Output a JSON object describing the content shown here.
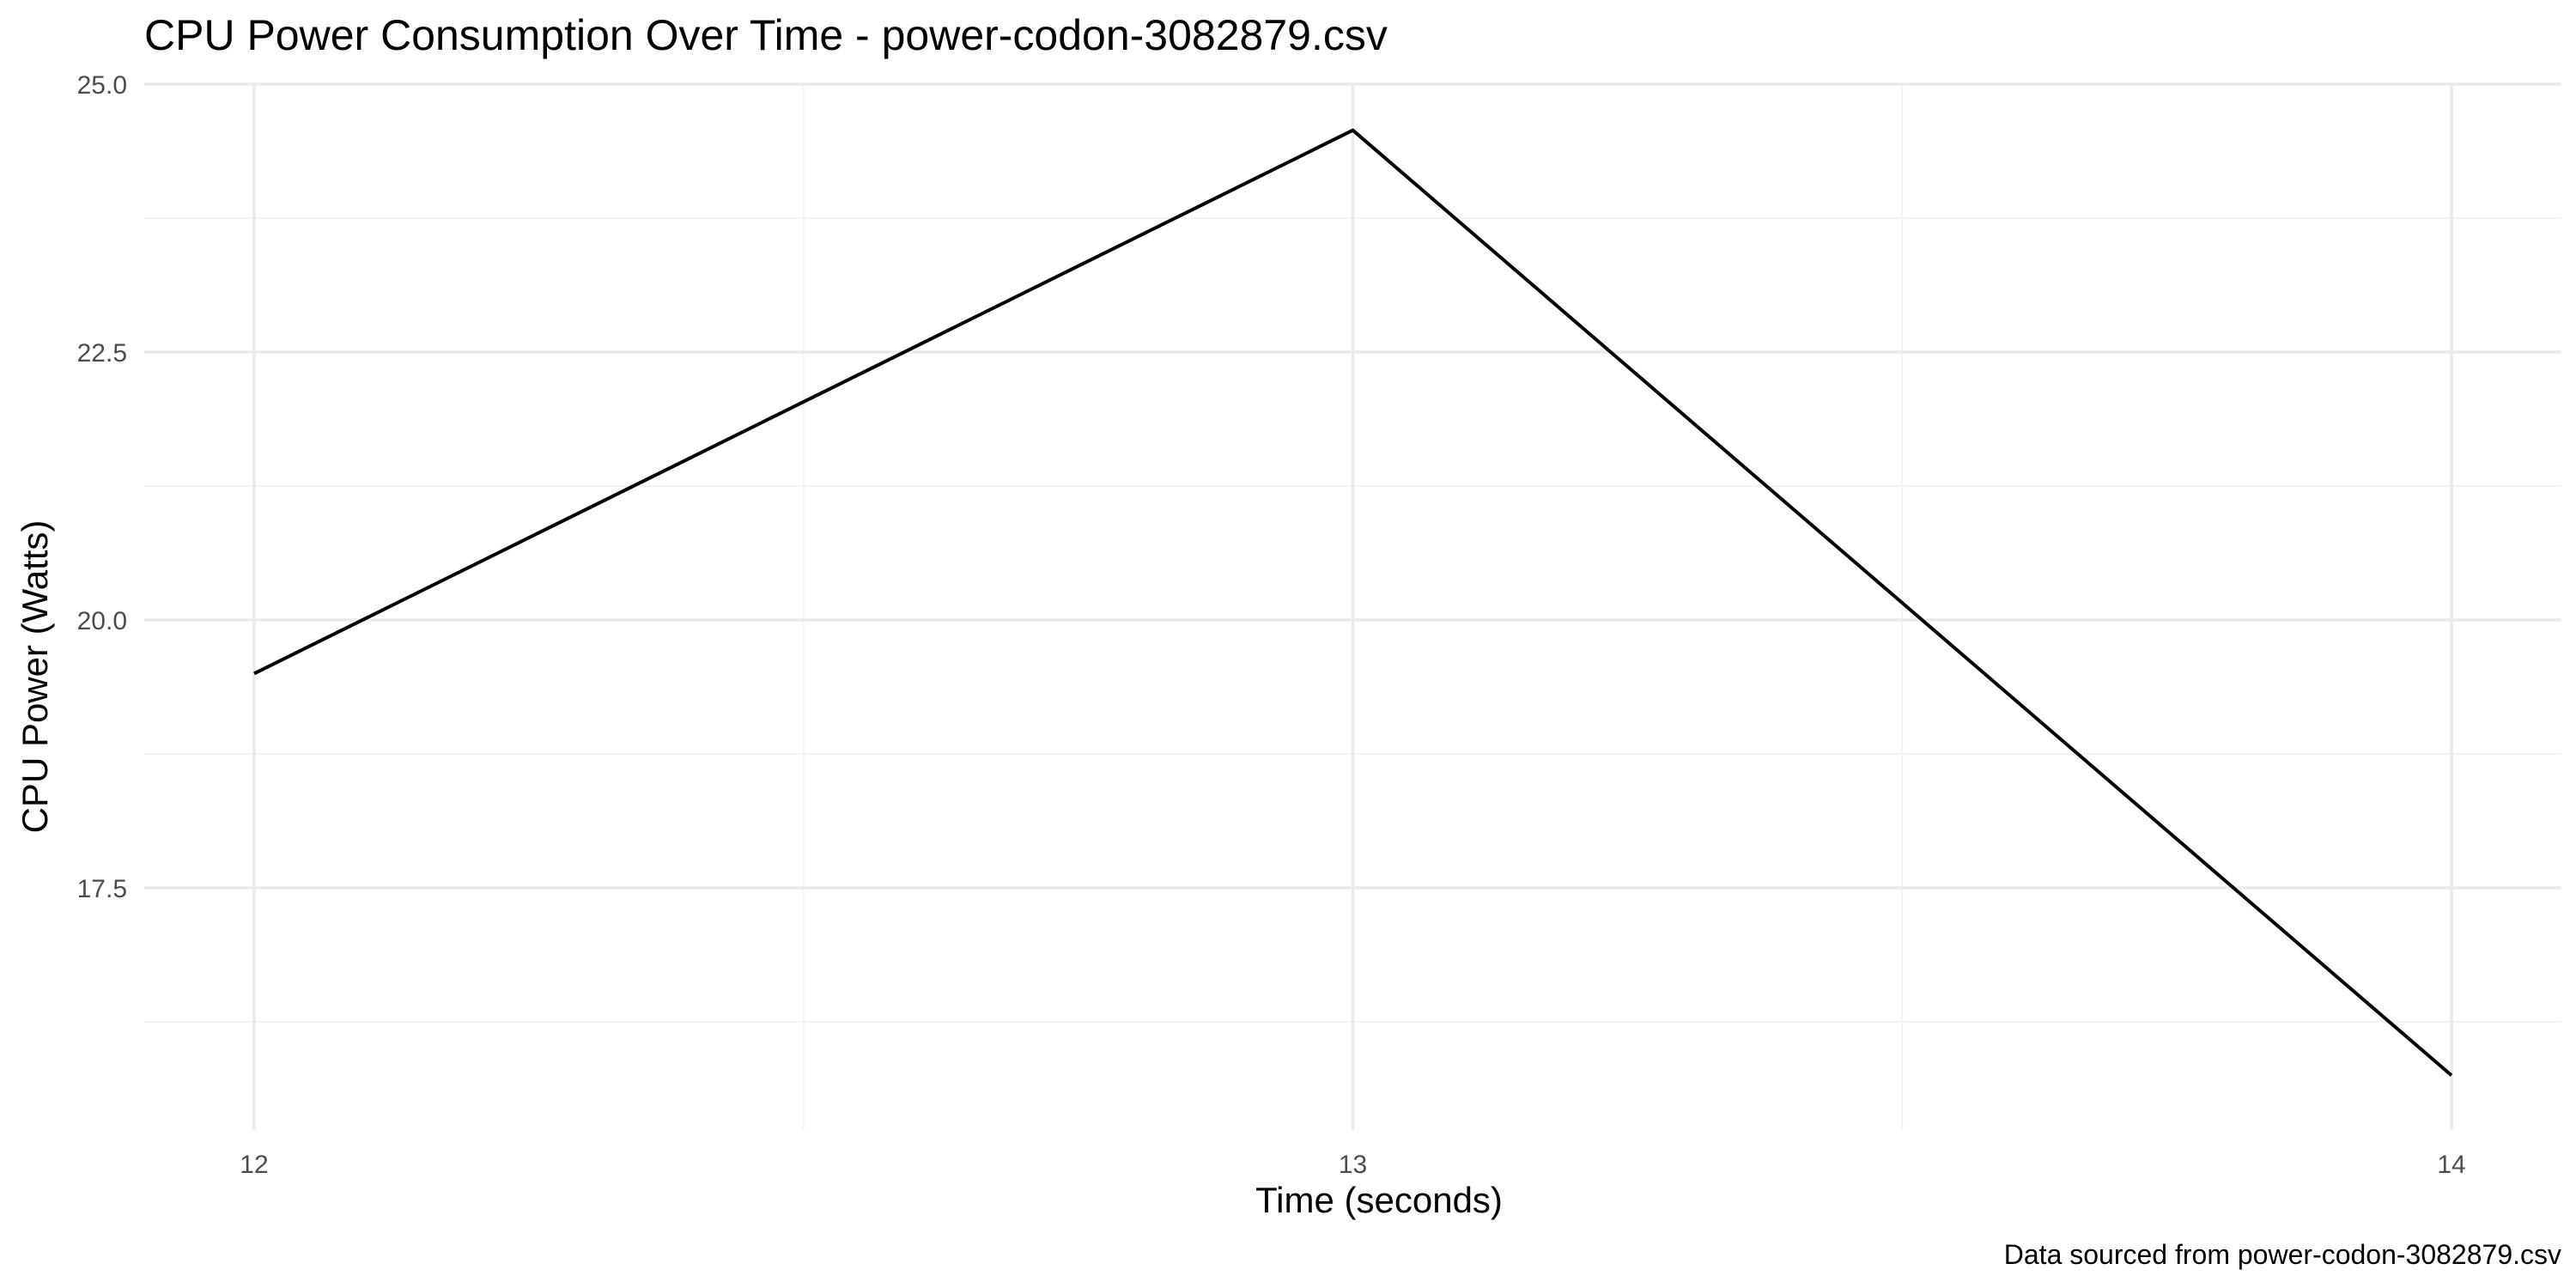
{
  "chart_data": {
    "type": "line",
    "title": "CPU Power Consumption Over Time - power-codon-3082879.csv",
    "xlabel": "Time (seconds)",
    "ylabel": "CPU Power (Watts)",
    "caption": "Data sourced from power-codon-3082879.csv",
    "x": [
      12,
      13,
      14
    ],
    "series": [
      {
        "values": [
          19.5,
          24.57,
          15.75
        ],
        "color": "#000000"
      }
    ],
    "x_ticks": [
      12,
      13,
      14
    ],
    "x_tick_labels": [
      "12",
      "13",
      "14"
    ],
    "y_ticks": [
      17.5,
      20.0,
      22.5,
      25.0
    ],
    "y_tick_labels": [
      "17.5",
      "20.0",
      "22.5",
      "25.0"
    ],
    "xlim": [
      11.9,
      14.1
    ],
    "ylim": [
      15.24,
      25.0
    ],
    "grid": true,
    "legend": "none"
  }
}
